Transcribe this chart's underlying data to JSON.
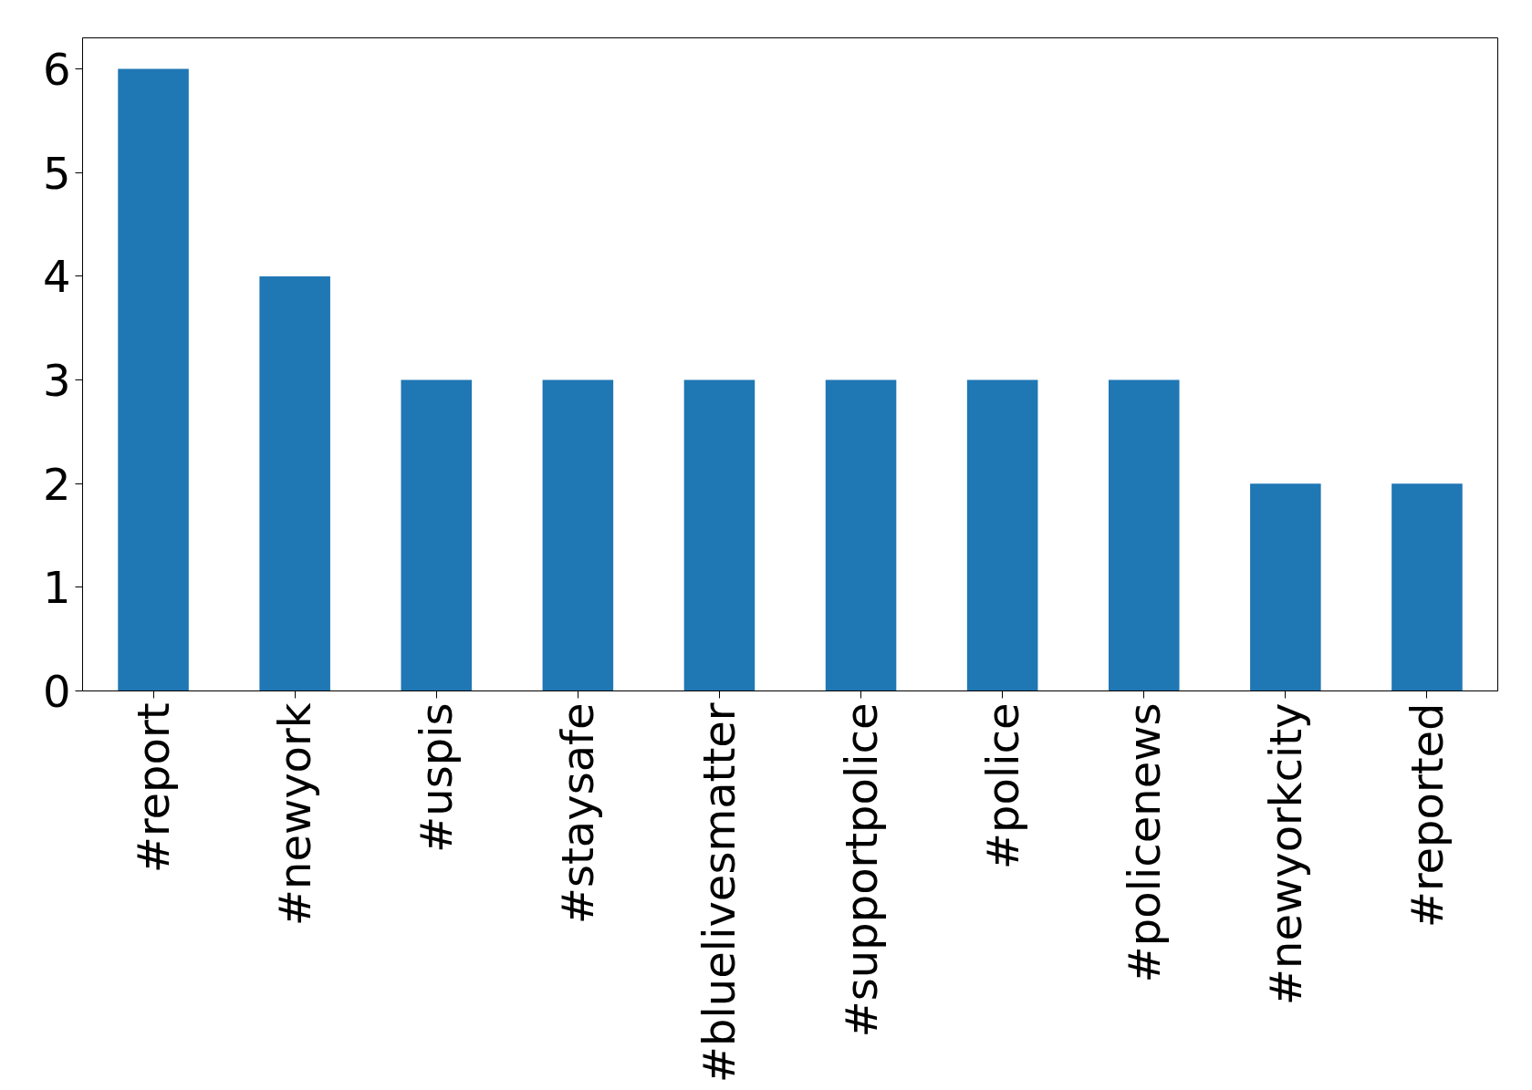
{
  "chart_data": {
    "type": "bar",
    "categories": [
      "#report",
      "#newyork",
      "#uspis",
      "#staysafe",
      "#bluelivesmatter",
      "#supportpolice",
      "#police",
      "#policenews",
      "#newyorkcity",
      "#reported"
    ],
    "values": [
      6,
      4,
      3,
      3,
      3,
      3,
      3,
      3,
      2,
      2
    ],
    "color": "#1f77b4",
    "ylim": [
      0,
      6.3
    ],
    "yticks": [
      0,
      1,
      2,
      3,
      4,
      5,
      6
    ],
    "grid": false
  }
}
